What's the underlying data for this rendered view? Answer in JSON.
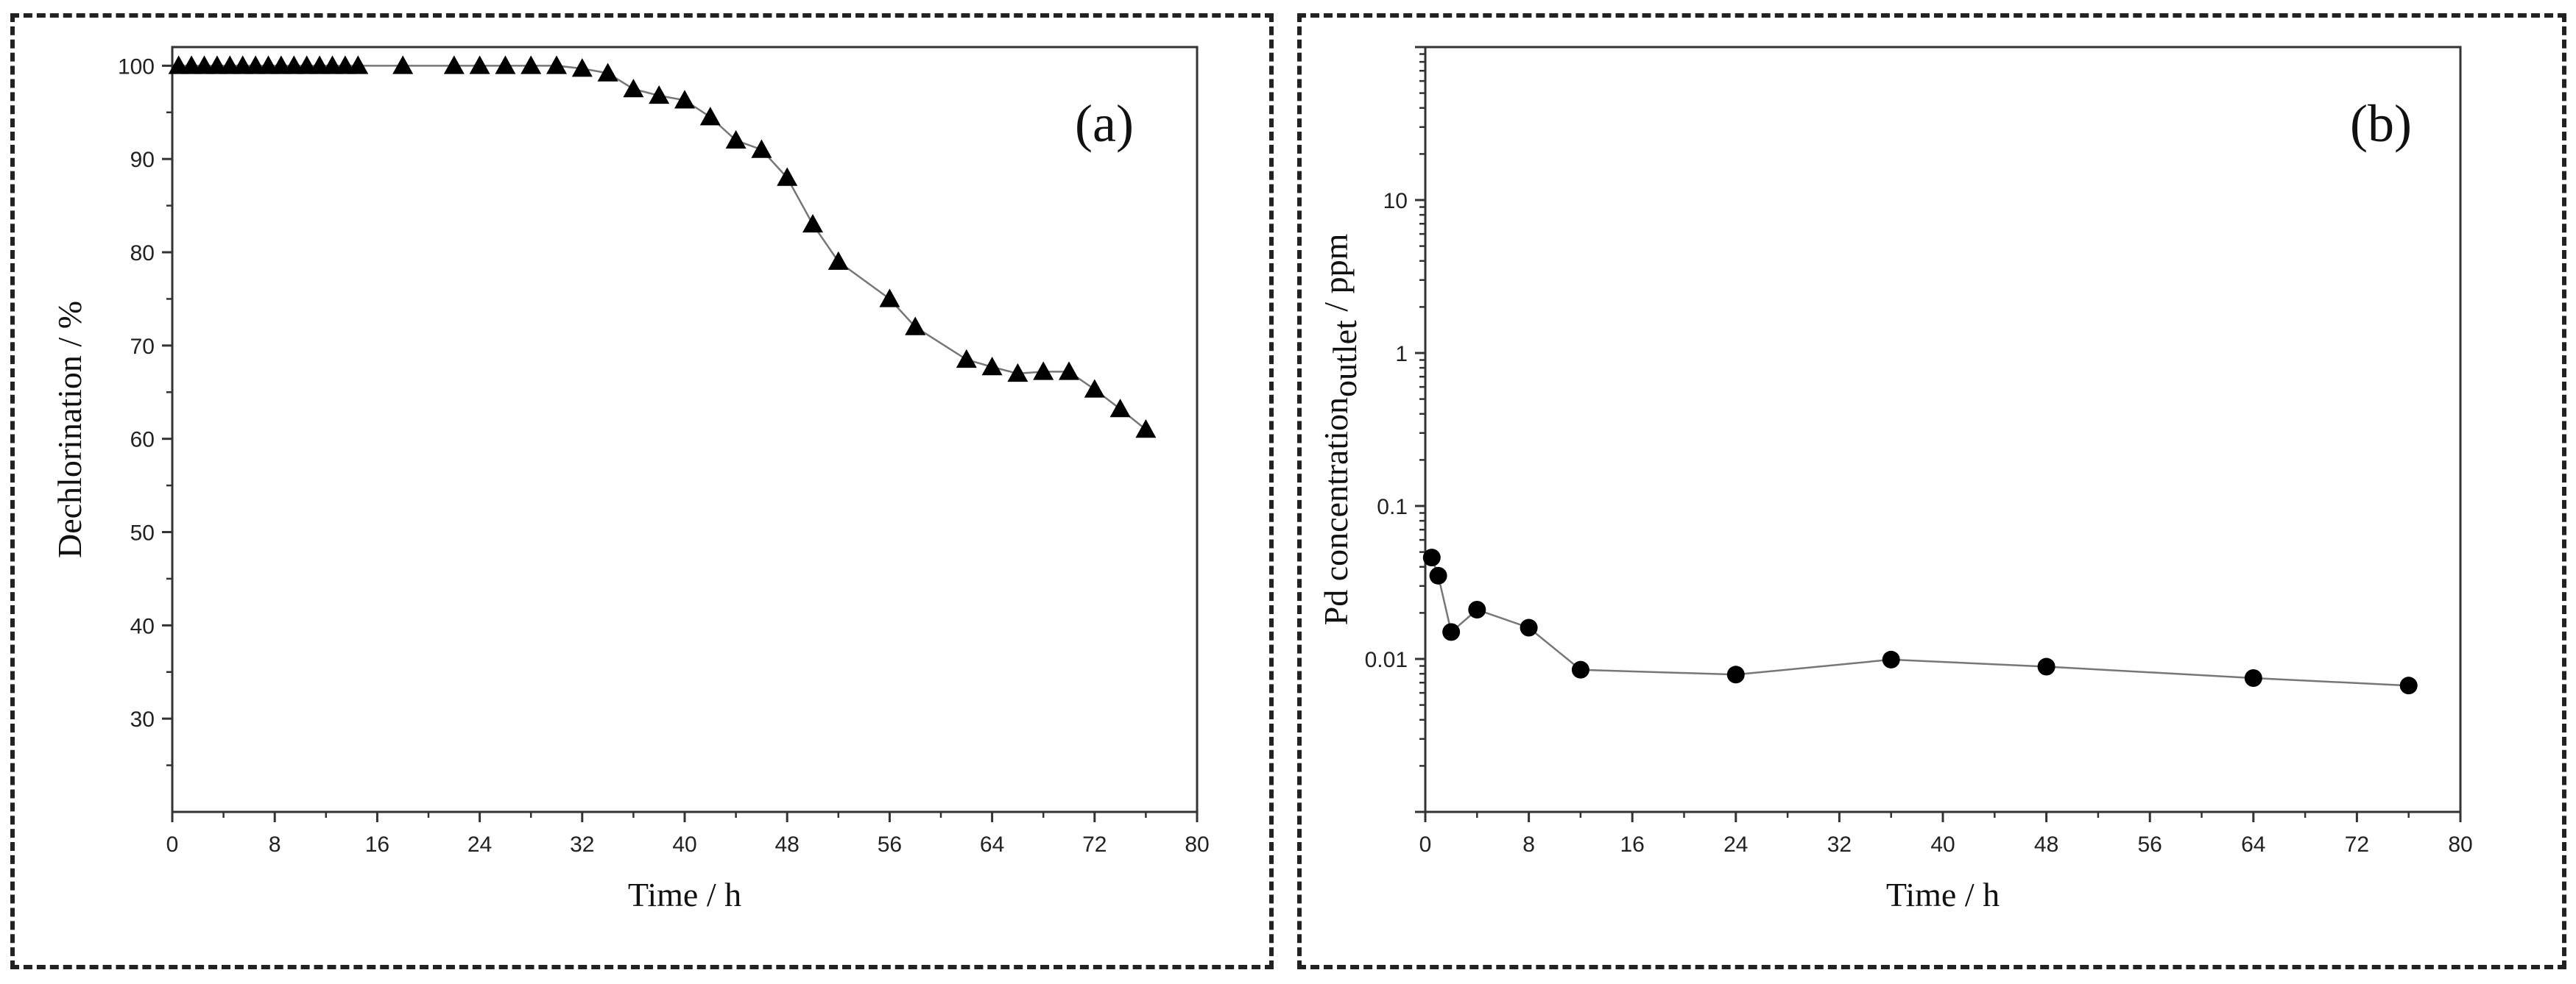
{
  "chart_data": [
    {
      "type": "line",
      "panel_label": "(a)",
      "xlabel": "Time / h",
      "ylabel": "Dechlorination / %",
      "xlim": [
        0,
        80
      ],
      "ylim": [
        20,
        102
      ],
      "xticks": [
        0,
        8,
        16,
        24,
        32,
        40,
        48,
        56,
        64,
        72,
        80
      ],
      "yticks": [
        30,
        40,
        50,
        60,
        70,
        80,
        90,
        100
      ],
      "marker": "triangle",
      "series": [
        {
          "name": "Dechlorination",
          "x": [
            0.5,
            1.5,
            2.5,
            3.5,
            4.5,
            5.5,
            6.5,
            7.5,
            8.5,
            9.5,
            10.5,
            11.5,
            12.5,
            13.5,
            14.5,
            18,
            22,
            24,
            26,
            28,
            30,
            32,
            34,
            36,
            38,
            40,
            42,
            44,
            46,
            48,
            50,
            52,
            56,
            58,
            62,
            64,
            66,
            68,
            70,
            72,
            74,
            76
          ],
          "y": [
            100,
            100,
            100,
            100,
            100,
            100,
            100,
            100,
            100,
            100,
            100,
            100,
            100,
            100,
            100,
            100,
            100,
            100,
            100,
            100,
            100,
            99.7,
            99.2,
            97.5,
            96.8,
            96.3,
            94.5,
            92,
            91,
            88,
            83,
            79,
            75,
            72,
            68.5,
            67.7,
            67,
            67.2,
            67.2,
            65.3,
            63.2,
            61
          ]
        }
      ]
    },
    {
      "type": "line",
      "panel_label": "(b)",
      "xlabel": "Time / h",
      "ylabel_main": "Pd concentration",
      "ylabel_subscript": "outlet",
      "ylabel_unit": " / ppm",
      "xlim": [
        0,
        80
      ],
      "ylim": [
        0.001,
        100
      ],
      "yscale": "log",
      "xticks": [
        0,
        8,
        16,
        24,
        32,
        40,
        48,
        56,
        64,
        72,
        80
      ],
      "yticks": [
        0.01,
        0.1,
        1,
        10
      ],
      "ytick_labels": [
        "0.01",
        "0.1",
        "1",
        "10"
      ],
      "marker": "circle",
      "series": [
        {
          "name": "Pd concentration outlet",
          "x": [
            0.5,
            1,
            2,
            4,
            8,
            12,
            24,
            36,
            48,
            64,
            76
          ],
          "y": [
            0.046,
            0.035,
            0.015,
            0.021,
            0.016,
            0.0085,
            0.0079,
            0.0099,
            0.0089,
            0.0075,
            0.0067
          ]
        }
      ]
    }
  ]
}
